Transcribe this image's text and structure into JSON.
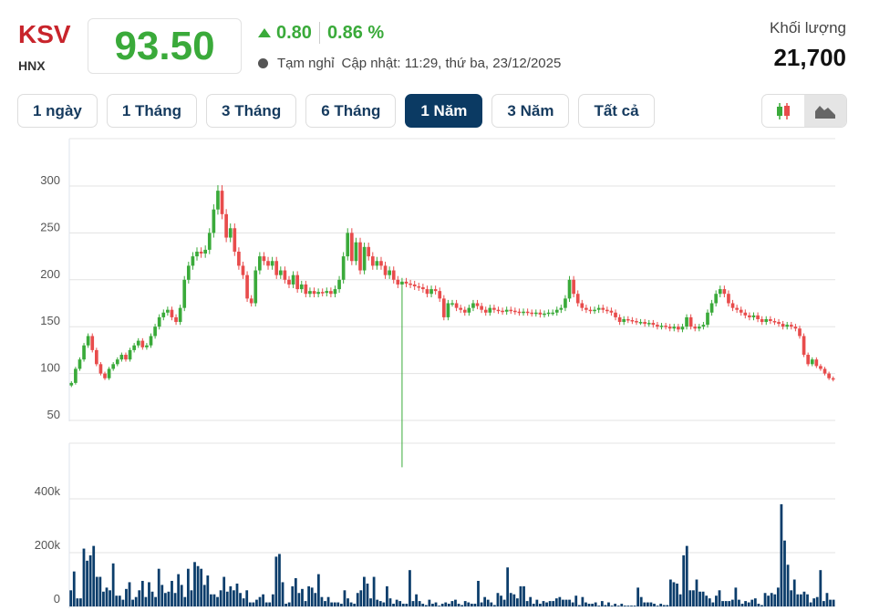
{
  "header": {
    "symbol": "KSV",
    "exchange": "HNX",
    "price": "93.50",
    "change": "0.80",
    "change_pct": "0.86 %",
    "status": "Tạm nghỉ",
    "updated": "Cập nhật: 11:29, thứ ba, 23/12/2025",
    "volume_label": "Khối lượng",
    "volume_value": "21,700"
  },
  "tabs": [
    {
      "label": "1 ngày"
    },
    {
      "label": "1 Tháng"
    },
    {
      "label": "3 Tháng"
    },
    {
      "label": "6 Tháng"
    },
    {
      "label": "1 Năm",
      "active": true
    },
    {
      "label": "3 Năm"
    },
    {
      "label": "Tất cả"
    }
  ],
  "chart_toggle": {
    "options": [
      "candlestick-icon",
      "area-chart-icon"
    ],
    "selected": "area-chart-icon"
  },
  "colors": {
    "up": "#3aaa3a",
    "down": "#e84c4c",
    "volume": "#0b3d6b",
    "accent": "#0b3a63"
  },
  "chart_data": [
    {
      "type": "candlestick",
      "yticks": [
        50,
        100,
        150,
        200,
        250,
        300
      ],
      "ylim": [
        45,
        330
      ],
      "grid": true,
      "close": [
        90,
        105,
        115,
        130,
        140,
        125,
        110,
        100,
        95,
        105,
        110,
        115,
        120,
        115,
        125,
        130,
        135,
        128,
        130,
        140,
        150,
        160,
        165,
        168,
        160,
        155,
        170,
        200,
        215,
        225,
        230,
        228,
        232,
        250,
        275,
        295,
        270,
        245,
        255,
        230,
        215,
        205,
        180,
        175,
        210,
        225,
        220,
        215,
        220,
        205,
        210,
        200,
        195,
        205,
        190,
        195,
        185,
        188,
        185,
        187,
        186,
        188,
        185,
        190,
        200,
        225,
        250,
        220,
        240,
        210,
        235,
        225,
        215,
        220,
        215,
        205,
        210,
        200,
        195,
        198,
        196,
        195,
        193,
        192,
        190,
        185,
        190,
        188,
        180,
        160,
        175,
        175,
        170,
        168,
        165,
        170,
        175,
        172,
        168,
        165,
        170,
        168,
        167,
        166,
        168,
        167,
        166,
        165,
        166,
        165,
        164,
        165,
        163,
        164,
        165,
        165,
        168,
        170,
        180,
        200,
        185,
        175,
        170,
        168,
        167,
        168,
        170,
        168,
        167,
        165,
        160,
        155,
        158,
        157,
        156,
        155,
        155,
        153,
        154,
        152,
        150,
        151,
        150,
        148,
        150,
        147,
        150,
        160,
        150,
        148,
        150,
        152,
        165,
        175,
        185,
        190,
        185,
        175,
        170,
        168,
        165,
        162,
        160,
        162,
        158,
        155,
        158,
        156,
        155,
        153,
        150,
        152,
        150,
        148,
        140,
        120,
        110,
        115,
        108,
        105,
        100,
        95,
        93.5
      ],
      "spike_low": {
        "index": 79,
        "low": 0
      }
    },
    {
      "type": "bar",
      "yticks_labels": [
        "0",
        "200k",
        "400k"
      ],
      "yticks": [
        0,
        200,
        400
      ],
      "ylim": [
        0,
        560
      ],
      "volume_k": [
        60,
        130,
        30,
        30,
        215,
        170,
        190,
        225,
        110,
        110,
        55,
        70,
        60,
        160,
        40,
        40,
        25,
        65,
        90,
        25,
        35,
        60,
        95,
        35,
        90,
        55,
        35,
        140,
        80,
        50,
        55,
        95,
        50,
        120,
        80,
        35,
        140,
        60,
        165,
        150,
        140,
        80,
        115,
        45,
        45,
        35,
        60,
        110,
        55,
        75,
        60,
        85,
        50,
        30,
        60,
        15,
        15,
        25,
        35,
        45,
        15,
        15,
        45,
        185,
        195,
        90,
        10,
        15,
        75,
        105,
        50,
        65,
        20,
        75,
        70,
        50,
        120,
        35,
        20,
        35,
        15,
        15,
        15,
        10,
        60,
        30,
        15,
        10,
        50,
        60,
        110,
        85,
        30,
        110,
        25,
        20,
        15,
        75,
        30,
        10,
        25,
        20,
        10,
        10,
        135,
        20,
        45,
        20,
        10,
        5,
        25,
        10,
        15,
        3,
        10,
        15,
        10,
        20,
        25,
        10,
        5,
        20,
        15,
        10,
        10,
        95,
        15,
        35,
        25,
        15,
        5,
        50,
        40,
        25,
        145,
        50,
        45,
        30,
        75,
        75,
        20,
        35,
        10,
        25,
        10,
        20,
        15,
        20,
        20,
        30,
        35,
        25,
        25,
        25,
        15,
        40,
        5,
        35,
        15,
        10,
        10,
        15,
        3,
        20,
        5,
        15,
        3,
        10,
        3,
        10,
        3,
        3,
        3,
        3,
        70,
        35,
        15,
        15,
        15,
        10,
        3,
        10,
        5,
        5,
        100,
        90,
        85,
        45,
        190,
        225,
        60,
        60,
        100,
        55,
        55,
        40,
        30,
        15,
        40,
        60,
        20,
        20,
        20,
        25,
        70,
        25,
        10,
        20,
        15,
        25,
        30,
        10,
        5,
        50,
        40,
        50,
        45,
        70,
        380,
        245,
        155,
        60,
        100,
        45,
        45,
        55,
        45,
        15,
        30,
        35,
        135,
        20,
        50,
        25,
        25
      ]
    }
  ]
}
